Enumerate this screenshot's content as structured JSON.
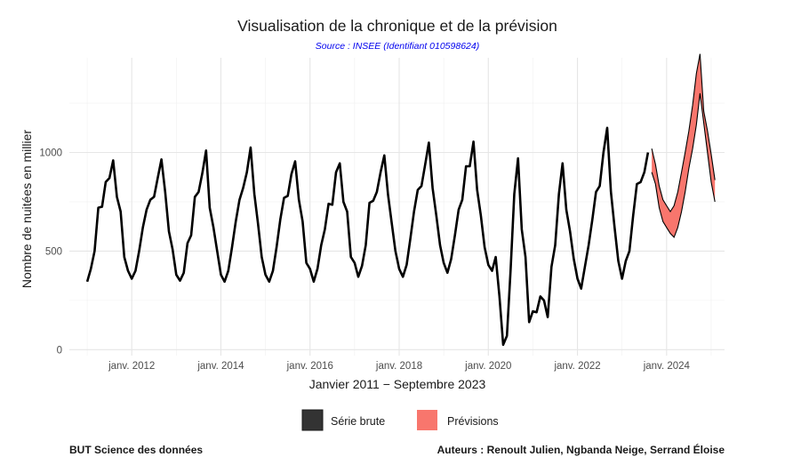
{
  "chart_data": {
    "type": "line",
    "title": "Visualisation de la chronique et de la prévision",
    "subtitle": "Source : INSEE (Identifiant 010598624)",
    "xlabel": "Janvier 2011 − Septembre 2023",
    "ylabel": "Nombre de nuitées en millier",
    "xlim": [
      2010.6,
      2025.3
    ],
    "ylim": [
      -30,
      1480
    ],
    "y_ticks": [
      0,
      500,
      1000
    ],
    "y_tick_labels": [
      "0",
      "500",
      "1000"
    ],
    "x_ticks": [
      2012,
      2014,
      2016,
      2018,
      2020,
      2022,
      2024
    ],
    "x_tick_labels": [
      "janv. 2012",
      "janv. 2014",
      "janv. 2016",
      "janv. 2018",
      "janv. 2020",
      "janv. 2022",
      "janv. 2024"
    ],
    "grid": true,
    "legend_position": "bottom",
    "series": [
      {
        "name": "Série brute",
        "color": "#000000",
        "start": 2011.0,
        "step_months": 1,
        "values": [
          345,
          410,
          500,
          720,
          725,
          850,
          870,
          960,
          775,
          700,
          470,
          400,
          360,
          400,
          500,
          620,
          710,
          760,
          775,
          870,
          965,
          800,
          600,
          510,
          380,
          350,
          390,
          540,
          580,
          775,
          800,
          895,
          1010,
          720,
          620,
          500,
          380,
          345,
          400,
          520,
          650,
          760,
          820,
          900,
          1025,
          790,
          640,
          470,
          380,
          345,
          400,
          520,
          660,
          770,
          780,
          890,
          955,
          760,
          650,
          440,
          410,
          345,
          410,
          530,
          610,
          740,
          735,
          900,
          945,
          750,
          700,
          470,
          440,
          370,
          425,
          530,
          745,
          755,
          800,
          900,
          985,
          785,
          640,
          500,
          410,
          370,
          430,
          560,
          700,
          810,
          830,
          940,
          1050,
          820,
          680,
          530,
          440,
          390,
          460,
          580,
          710,
          760,
          930,
          930,
          1055,
          810,
          680,
          520,
          430,
          400,
          470,
          270,
          25,
          70,
          400,
          790,
          970,
          610,
          470,
          140,
          195,
          190,
          270,
          250,
          165,
          420,
          530,
          790,
          945,
          710,
          600,
          460,
          360,
          310,
          420,
          530,
          660,
          800,
          830,
          1000,
          1125,
          800,
          620,
          450,
          360,
          450,
          500,
          680,
          840,
          850,
          900,
          1000
        ]
      },
      {
        "name": "Prévisions",
        "color": "#F8766D",
        "start": 2023.667,
        "step_months": 1,
        "lower": [
          900,
          840,
          720,
          650,
          620,
          590,
          570,
          620,
          700,
          800,
          920,
          1020,
          1140,
          1300,
          1150,
          1000,
          850,
          750
        ],
        "upper": [
          1020,
          940,
          830,
          760,
          730,
          700,
          730,
          800,
          900,
          1000,
          1110,
          1240,
          1400,
          1500,
          1210,
          1110,
          990,
          860
        ],
        "mean": [
          1015,
          930,
          820,
          700,
          660,
          620,
          640,
          700,
          780,
          870,
          980,
          1060,
          1180,
          1300,
          1180,
          1030,
          900,
          780
        ]
      }
    ]
  },
  "legend": {
    "items": [
      {
        "label": "Série brute",
        "color": "#333333"
      },
      {
        "label": "Prévisions",
        "color": "#F8766D"
      }
    ]
  },
  "footer": {
    "left": "BUT Science des données",
    "right": "Auteurs : Renoult Julien, Ngbanda Neige, Serrand Éloise"
  }
}
